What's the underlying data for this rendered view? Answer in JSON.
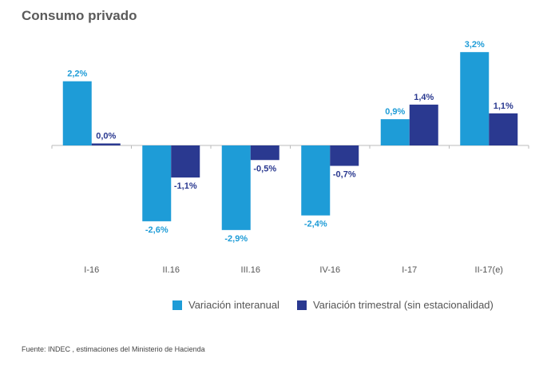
{
  "title": "Consumo privado",
  "source": "Fuente: INDEC , estimaciones del Ministerio de Hacienda",
  "colors": {
    "series1": "#1e9cd7",
    "series2": "#2a3990",
    "axis": "#bbbbbb"
  },
  "chart_data": {
    "type": "bar",
    "title": "Consumo privado",
    "categories": [
      "I-16",
      "II.16",
      "III.16",
      "IV-16",
      "I-17",
      "II-17(e)"
    ],
    "series": [
      {
        "name": "Variación interanual",
        "values": [
          2.2,
          -2.6,
          -2.9,
          -2.4,
          0.9,
          3.2
        ],
        "labels": [
          "2,2%",
          "-2,6%",
          "-2,9%",
          "-2,4%",
          "0,9%",
          "3,2%"
        ]
      },
      {
        "name": "Variación trimestral (sin estacionalidad)",
        "values": [
          0.0,
          -1.1,
          -0.5,
          -0.7,
          1.4,
          1.1
        ],
        "labels": [
          "0,0%",
          "-1,1%",
          "-0,5%",
          "-0,7%",
          "1,4%",
          "1,1%"
        ]
      }
    ],
    "ylim": [
      -3.5,
      3.5
    ],
    "grid": false,
    "legend": "bottom"
  }
}
